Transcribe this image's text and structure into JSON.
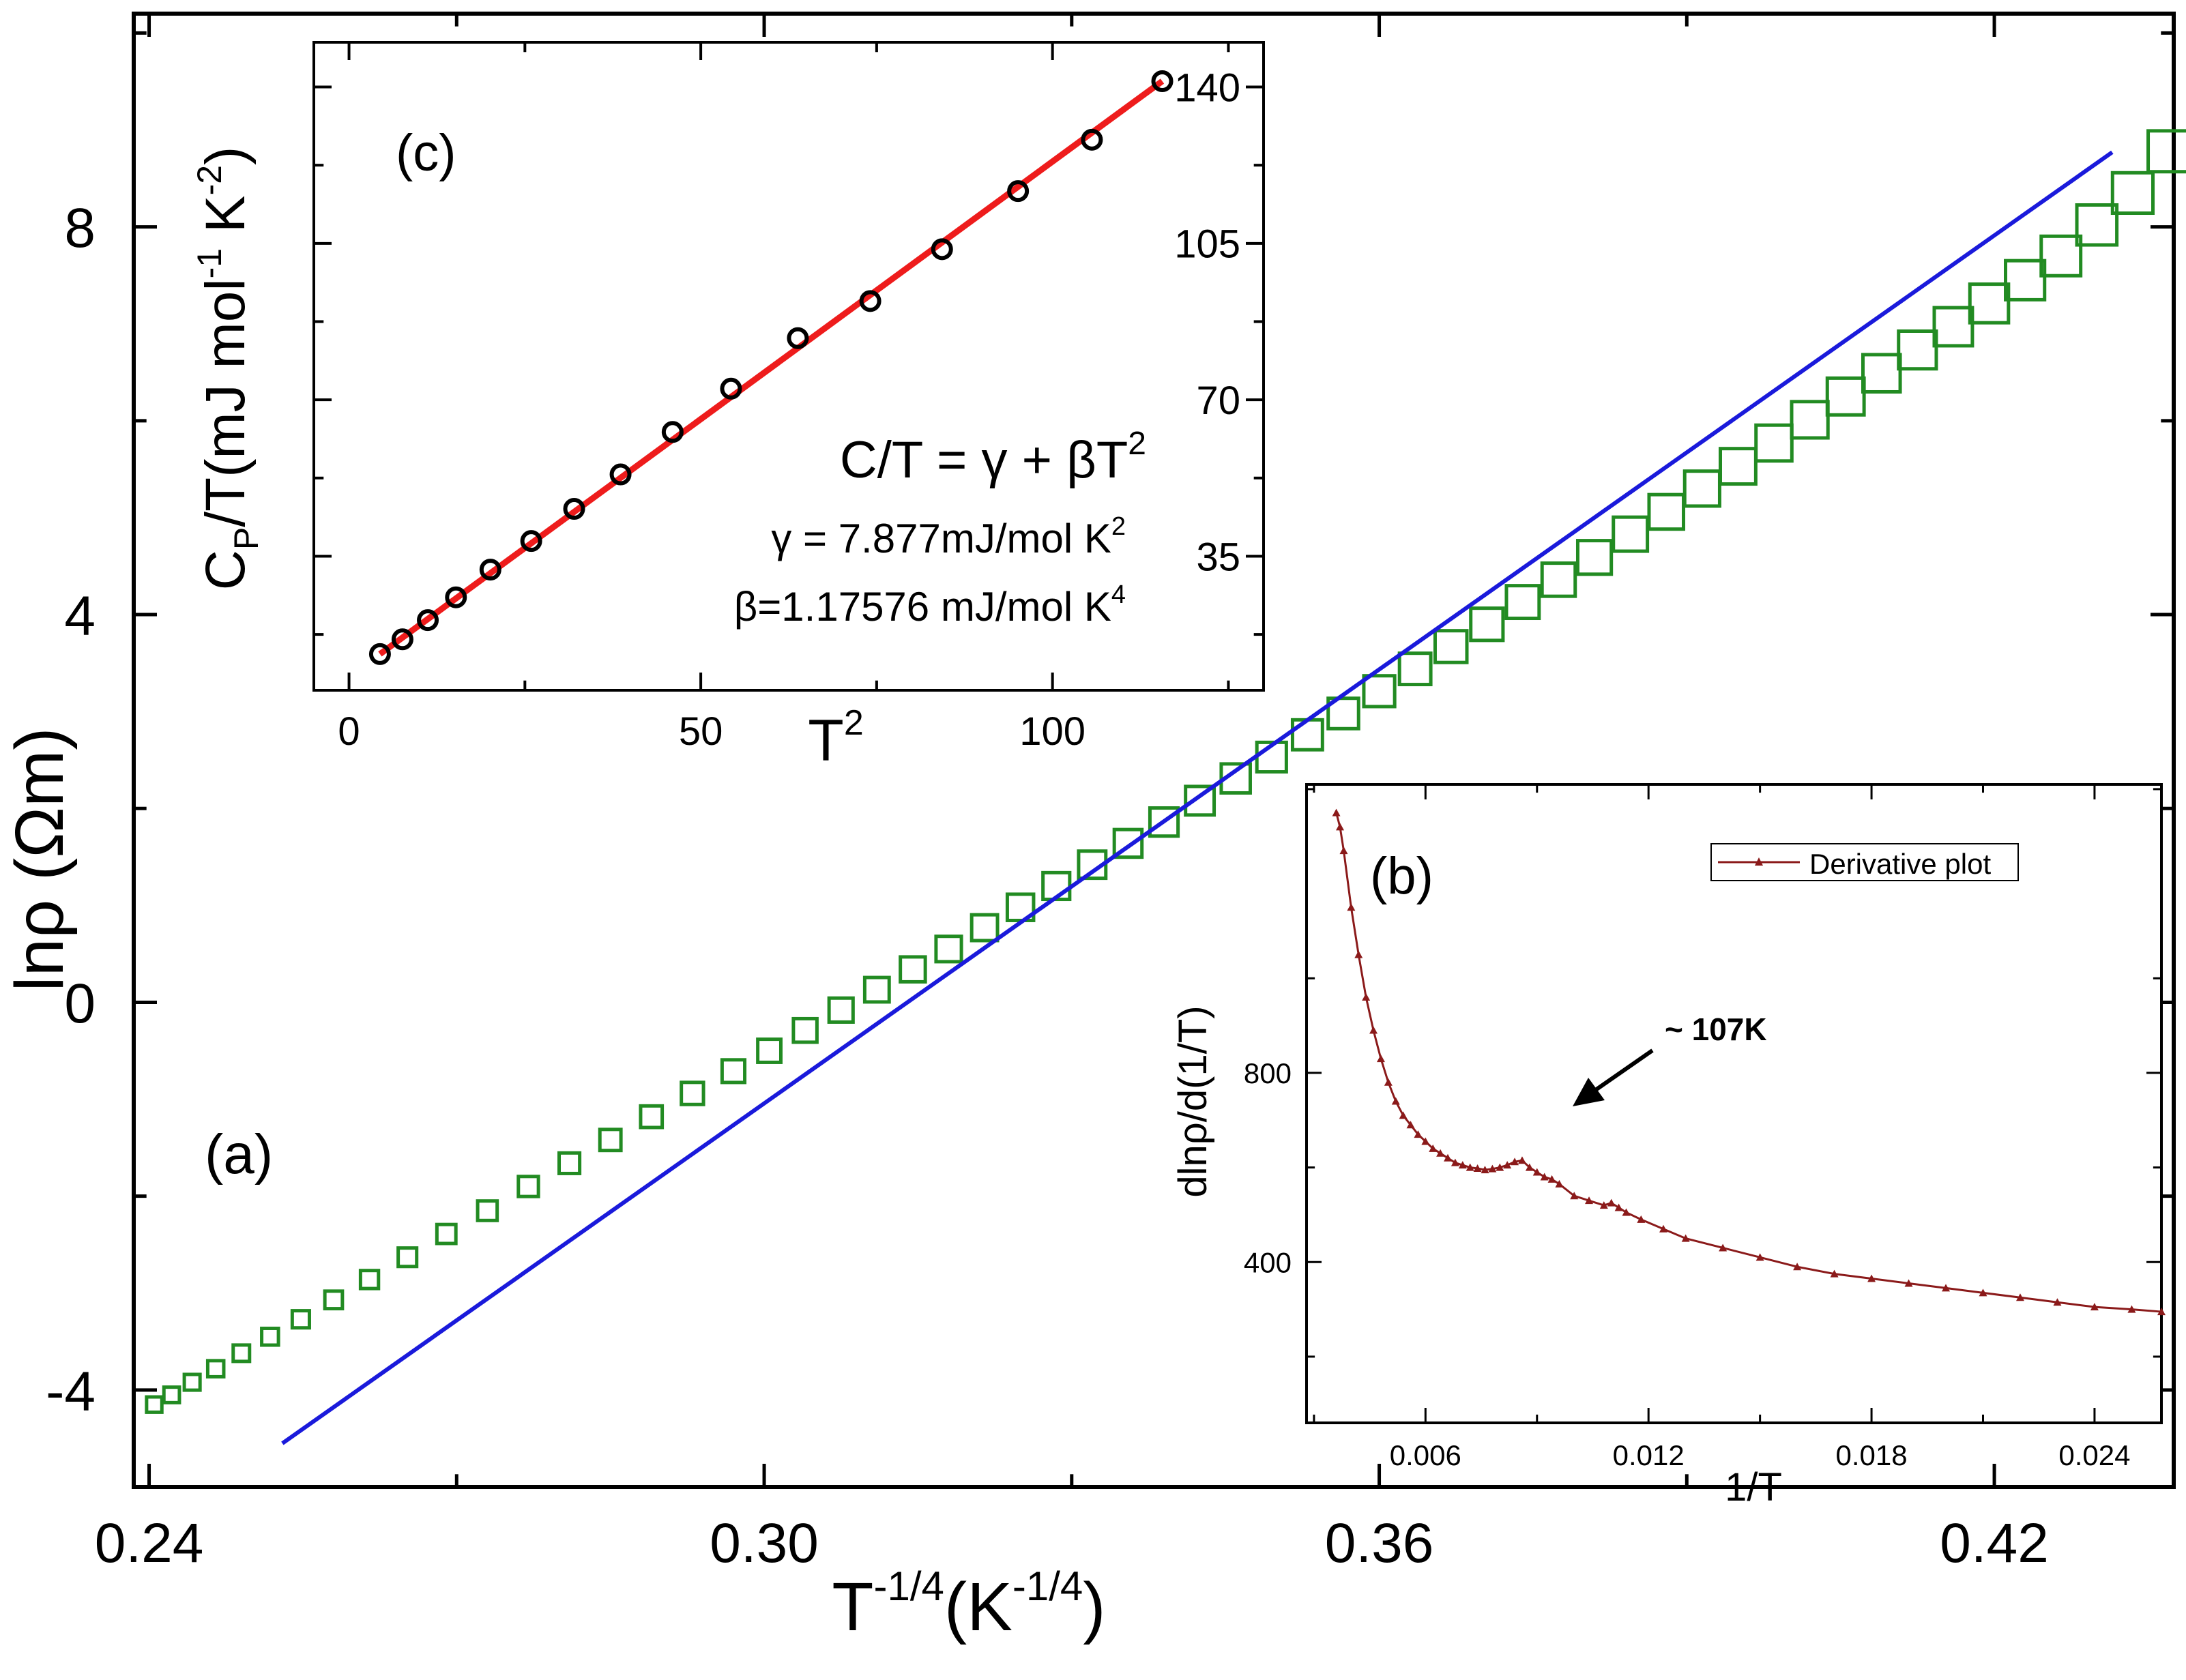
{
  "chart_data": [
    {
      "id": "a",
      "type": "scatter",
      "panel_label": "(a)",
      "xlabel": {
        "base": "T",
        "exp": "-1/4",
        "mid": "(K",
        "exp2": "-1/4",
        "end": ")"
      },
      "ylabel": "lnρ (Ωm)",
      "xlim": [
        0.2385,
        0.4375
      ],
      "ylim": [
        -5.0,
        10.2
      ],
      "xticks": [
        "0.24",
        "0.30",
        "0.36",
        "0.42"
      ],
      "xtick_values": [
        0.24,
        0.3,
        0.36,
        0.42
      ],
      "yticks": [
        "-4",
        "0",
        "4",
        "8"
      ],
      "ytick_values": [
        -4,
        0,
        4,
        8
      ],
      "grid": false,
      "series": [
        {
          "name": "data",
          "color": "#228b22",
          "marker": "square-open",
          "x": [
            0.2405,
            0.2422,
            0.2442,
            0.2465,
            0.249,
            0.2518,
            0.2548,
            0.258,
            0.2615,
            0.2652,
            0.269,
            0.273,
            0.277,
            0.281,
            0.285,
            0.289,
            0.293,
            0.297,
            0.3005,
            0.304,
            0.3075,
            0.311,
            0.3145,
            0.318,
            0.3215,
            0.325,
            0.3285,
            0.332,
            0.3355,
            0.339,
            0.3425,
            0.346,
            0.3495,
            0.353,
            0.3565,
            0.36,
            0.3635,
            0.367,
            0.3705,
            0.374,
            0.3775,
            0.381,
            0.3845,
            0.388,
            0.3915,
            0.395,
            0.3985,
            0.402,
            0.4055,
            0.409,
            0.4125,
            0.416,
            0.4195,
            0.423,
            0.4265,
            0.43,
            0.4335,
            0.437
          ],
          "y": [
            -4.15,
            -4.05,
            -3.92,
            -3.78,
            -3.62,
            -3.45,
            -3.27,
            -3.07,
            -2.86,
            -2.63,
            -2.39,
            -2.15,
            -1.9,
            -1.66,
            -1.42,
            -1.18,
            -0.94,
            -0.71,
            -0.5,
            -0.29,
            -0.08,
            0.13,
            0.34,
            0.55,
            0.77,
            0.98,
            1.2,
            1.42,
            1.64,
            1.86,
            2.08,
            2.31,
            2.53,
            2.76,
            2.98,
            3.21,
            3.44,
            3.67,
            3.9,
            4.13,
            4.36,
            4.59,
            4.83,
            5.06,
            5.3,
            5.53,
            5.77,
            6.01,
            6.25,
            6.49,
            6.73,
            6.97,
            7.21,
            7.45,
            7.7,
            8.02,
            8.35,
            8.78
          ]
        },
        {
          "name": "fit",
          "color": "#1a1adb",
          "type": "line",
          "x": [
            0.253,
            0.4315
          ],
          "y": [
            -4.55,
            8.77
          ]
        }
      ]
    },
    {
      "id": "b",
      "type": "line",
      "panel_label": "(b)",
      "xlabel": "1/T",
      "ylabel": "dlnρ/d(1/T)",
      "xlim": [
        0.0028,
        0.0258
      ],
      "ylim": [
        60,
        1410
      ],
      "xticks": [
        "0.006",
        "0.012",
        "0.018",
        "0.024"
      ],
      "xtick_values": [
        0.006,
        0.012,
        0.018,
        0.024
      ],
      "yticks": [
        "400",
        "800"
      ],
      "ytick_values": [
        400,
        800
      ],
      "legend": {
        "label": "Derivative plot",
        "position": "top-right"
      },
      "annotation": "~ 107K",
      "series": [
        {
          "name": "Derivative plot",
          "color": "#8b1a1a",
          "marker": "triangle",
          "x": [
            0.0036,
            0.0037,
            0.0038,
            0.004,
            0.0042,
            0.0044,
            0.0046,
            0.0048,
            0.005,
            0.0052,
            0.0054,
            0.0056,
            0.0058,
            0.006,
            0.0062,
            0.0064,
            0.0066,
            0.0068,
            0.007,
            0.0072,
            0.0074,
            0.0076,
            0.0078,
            0.008,
            0.0082,
            0.0084,
            0.0086,
            0.0088,
            0.009,
            0.0092,
            0.0094,
            0.0096,
            0.01,
            0.0104,
            0.0108,
            0.011,
            0.0112,
            0.0114,
            0.0118,
            0.0124,
            0.013,
            0.014,
            0.015,
            0.016,
            0.017,
            0.018,
            0.019,
            0.02,
            0.021,
            0.022,
            0.023,
            0.024,
            0.025,
            0.0258
          ],
          "y": [
            1350,
            1320,
            1270,
            1150,
            1050,
            960,
            890,
            830,
            780,
            740,
            710,
            690,
            670,
            655,
            640,
            630,
            620,
            610,
            605,
            600,
            598,
            595,
            597,
            600,
            605,
            612,
            615,
            600,
            590,
            580,
            575,
            565,
            540,
            530,
            520,
            525,
            515,
            505,
            490,
            470,
            450,
            430,
            410,
            390,
            375,
            365,
            355,
            345,
            335,
            325,
            315,
            305,
            300,
            295
          ]
        }
      ]
    },
    {
      "id": "c",
      "type": "scatter",
      "panel_label": "(c)",
      "xlabel": {
        "base": "T",
        "exp": "2"
      },
      "ylabel": {
        "part1": "C",
        "sub": "P",
        "part2": "/T(mJ mol",
        "exp1": "-1",
        "part3": " K",
        "exp2": "-2",
        "part4": ")"
      },
      "xlim": [
        -5,
        130
      ],
      "ylim": [
        5,
        150
      ],
      "xticks": [
        "0",
        "50",
        "100"
      ],
      "xtick_values": [
        0,
        50,
        100
      ],
      "yticks": [
        "35",
        "70",
        "105",
        "140"
      ],
      "ytick_values": [
        35,
        70,
        105,
        140
      ],
      "equation": {
        "lhs": "C/T = γ + βT",
        "lhs_exp": "2",
        "gamma": "γ = 7.877mJ/mol K",
        "gamma_exp": "2",
        "beta": "β=1.17576 mJ/mol K",
        "beta_exp": "4"
      },
      "series": [
        {
          "name": "data",
          "color": "#000000",
          "marker": "circle-open",
          "x": [
            4.4,
            7.6,
            11.2,
            15.2,
            20.1,
            25.9,
            32.0,
            38.6,
            46.0,
            54.3,
            63.8,
            74.1,
            84.3,
            95.1,
            105.6,
            115.6
          ],
          "y": [
            13.1,
            16.4,
            20.7,
            25.8,
            32.0,
            38.4,
            45.6,
            53.3,
            62.8,
            72.5,
            83.8,
            92.1,
            103.7,
            116.7,
            128.2,
            141.3
          ]
        },
        {
          "name": "fit",
          "color": "#ee1c1c",
          "type": "line",
          "x": [
            4.4,
            115.6
          ],
          "y": [
            13.1,
            141.3
          ]
        }
      ]
    }
  ]
}
